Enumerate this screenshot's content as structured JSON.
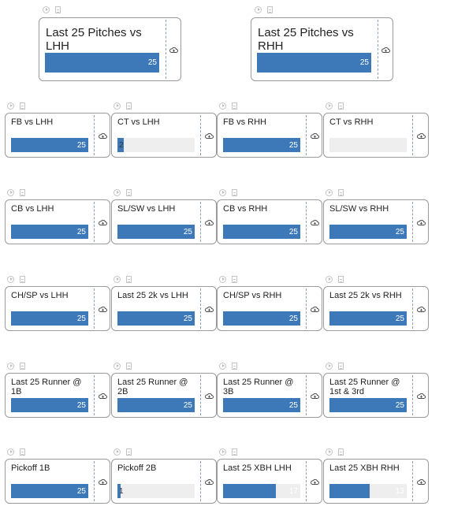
{
  "colors": {
    "bar_fill": "#3d79b9",
    "bar_track": "#eeeeee",
    "card_border": "#9a9a9a",
    "divider": "#8aa0b8"
  },
  "icons": {
    "top_left": "play-icon",
    "top_right": "doc-icon",
    "card_action": "cloud-icon"
  },
  "summary_tiles": [
    {
      "title": "Last 25 Pitches vs LHH",
      "value": "25",
      "fill": 1.0
    },
    {
      "title": "Last 25 Pitches vs RHH",
      "value": "25",
      "fill": 1.0
    }
  ],
  "tile_rows": [
    [
      {
        "title": "FB vs LHH",
        "value": "25",
        "fill": 1.0
      },
      {
        "title": "CT vs LHH",
        "value": "2",
        "fill": 0.08
      },
      {
        "title": "FB vs RHH",
        "value": "25",
        "fill": 1.0
      },
      {
        "title": "CT vs RHH",
        "value": "",
        "fill": 0.0
      }
    ],
    [
      {
        "title": "CB vs LHH",
        "value": "25",
        "fill": 1.0
      },
      {
        "title": "SL/SW vs LHH",
        "value": "25",
        "fill": 1.0
      },
      {
        "title": "CB vs RHH",
        "value": "25",
        "fill": 1.0
      },
      {
        "title": "SL/SW vs RHH",
        "value": "25",
        "fill": 1.0
      }
    ],
    [
      {
        "title": "CH/SP vs LHH",
        "value": "25",
        "fill": 1.0
      },
      {
        "title": "Last 25 2k vs LHH",
        "value": "25",
        "fill": 1.0
      },
      {
        "title": "CH/SP vs RHH",
        "value": "25",
        "fill": 1.0
      },
      {
        "title": "Last 25 2k vs RHH",
        "value": "25",
        "fill": 1.0
      }
    ],
    [
      {
        "title": "Last 25 Runner @ 1B",
        "value": "25",
        "fill": 1.0
      },
      {
        "title": "Last 25 Runner @ 2B",
        "value": "25",
        "fill": 1.0
      },
      {
        "title": "Last 25 Runner @ 3B",
        "value": "25",
        "fill": 1.0
      },
      {
        "title": "Last 25 Runner @ 1st & 3rd",
        "value": "25",
        "fill": 1.0
      }
    ],
    [
      {
        "title": "Pickoff 1B",
        "value": "25",
        "fill": 1.0
      },
      {
        "title": "Pickoff 2B",
        "value": "1",
        "fill": 0.04
      },
      {
        "title": "Last 25 XBH LHH",
        "value": "17",
        "fill": 0.68
      },
      {
        "title": "Last 25 XBH RHH",
        "value": "13",
        "fill": 0.52
      }
    ]
  ]
}
